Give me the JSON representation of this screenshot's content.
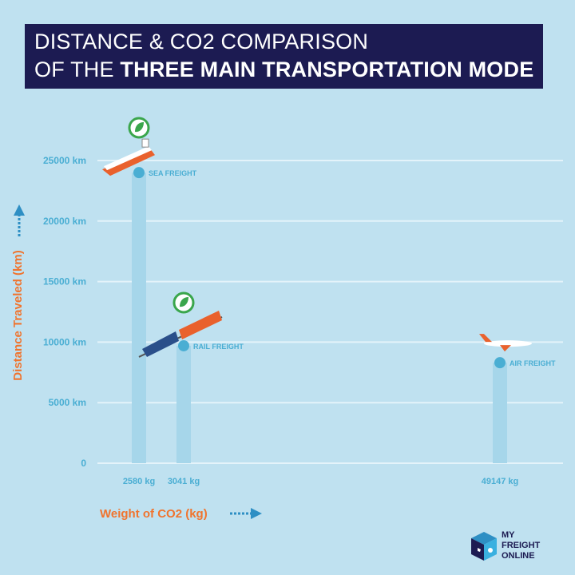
{
  "title": {
    "line1": "DISTANCE & CO2 COMPARISON",
    "line2_prefix": "OF THE ",
    "line2_bold": "THREE MAIN TRANSPORTATION MODE"
  },
  "chart_data": {
    "type": "scatter",
    "title": "DISTANCE & CO2 COMPARISON OF THE THREE MAIN TRANSPORTATION MODE",
    "xlabel": "Weight of CO2 (kg)",
    "ylabel": "Distance Traveled (km)",
    "ylim": [
      0,
      25000
    ],
    "yticks": [
      "0",
      "5000 km",
      "10000 km",
      "15000 km",
      "20000 km",
      "25000 km"
    ],
    "grid": true,
    "points": [
      {
        "name": "SEA FREIGHT",
        "x": 2580,
        "x_label": "2580 kg",
        "y": 24000,
        "eco_icon": true
      },
      {
        "name": "RAIL FREIGHT",
        "x": 3041,
        "x_label": "3041 kg",
        "y": 9700,
        "eco_icon": true
      },
      {
        "name": "AIR FREIGHT",
        "x": 49147,
        "x_label": "49147 kg",
        "y": 8300,
        "eco_icon": false
      }
    ],
    "colors": {
      "background": "#bfe1f0",
      "point": "#4aaed3",
      "axis_title": "#f0742e",
      "title_box": "#1c1b52",
      "eco_icon": "#3aa64c"
    }
  },
  "logo": {
    "line1": "MY",
    "line2": "FREIGHT",
    "line3": "ONLINE"
  }
}
